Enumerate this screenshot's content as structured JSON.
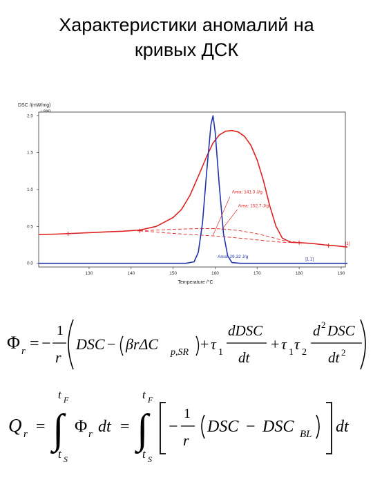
{
  "page": {
    "title_line1": "Характеристики аномалий на",
    "title_line2": "кривых ДСК"
  },
  "chart_data": {
    "type": "line",
    "ylabel": "DSC /(mW/mg)",
    "ylabel_sub": "↓ exo",
    "xlabel": "Temperature /°C",
    "xlim": [
      118,
      191
    ],
    "ylim": [
      -0.05,
      2.05
    ],
    "x_ticks": [
      "130",
      "140",
      "150",
      "160",
      "170",
      "180",
      "190"
    ],
    "y_ticks": [
      "0.0",
      "0.5",
      "1.0",
      "1.5",
      "2.0"
    ],
    "grid": false,
    "series": [
      {
        "color": "#dd2222",
        "x": [
          118,
          122,
          126,
          130,
          134,
          138,
          142,
          146,
          150,
          152,
          154,
          156,
          158,
          159.5,
          161,
          162.5,
          164,
          165.5,
          167,
          168.5,
          170,
          171.5,
          173,
          174.5,
          176,
          178,
          180,
          183,
          186,
          189,
          191.5
        ],
        "y": [
          0.39,
          0.395,
          0.405,
          0.415,
          0.425,
          0.435,
          0.45,
          0.5,
          0.62,
          0.73,
          0.92,
          1.18,
          1.45,
          1.63,
          1.74,
          1.79,
          1.8,
          1.78,
          1.72,
          1.6,
          1.4,
          1.12,
          0.78,
          0.5,
          0.34,
          0.285,
          0.28,
          0.27,
          0.25,
          0.235,
          0.22
        ]
      },
      {
        "color": "#2233aa",
        "x": [
          118,
          153,
          155,
          156,
          157,
          158,
          159,
          159.5,
          160,
          161,
          162,
          163,
          164,
          166,
          191.5
        ],
        "y": [
          0.0,
          0.0,
          0.02,
          0.15,
          0.55,
          1.25,
          1.88,
          2.0,
          1.78,
          1.05,
          0.4,
          0.1,
          0.01,
          0.0,
          0.0
        ]
      }
    ],
    "baselines": [
      {
        "color": "#dd2222",
        "x": [
          142,
          150,
          160,
          167,
          172,
          176,
          180
        ],
        "y": [
          0.44,
          0.405,
          0.37,
          0.335,
          0.305,
          0.285,
          0.28
        ]
      },
      {
        "color": "#dd2222",
        "x": [
          142,
          150,
          156,
          160,
          163,
          166,
          170,
          173,
          176,
          180
        ],
        "y": [
          0.44,
          0.46,
          0.47,
          0.47,
          0.46,
          0.44,
          0.4,
          0.36,
          0.31,
          0.28
        ]
      }
    ],
    "markers": [
      {
        "x": 125,
        "y": 0.4
      },
      {
        "x": 142,
        "y": 0.44
      },
      {
        "x": 180,
        "y": 0.28
      },
      {
        "x": 187,
        "y": 0.24
      }
    ],
    "annotations": [
      {
        "text": "Area: 141.3 J/g",
        "color": "#dd2222",
        "x": 164,
        "y": 0.95,
        "lx1": 163.5,
        "ly1": 0.9,
        "lx2": 159.5,
        "ly2": 0.38
      },
      {
        "text": "Area: 152.7 J/g",
        "color": "#dd2222",
        "x": 165.5,
        "y": 0.76,
        "lx1": 165.3,
        "ly1": 0.73,
        "lx2": 161.5,
        "ly2": 0.45
      },
      {
        "text": "Area: 29.32 J/g",
        "color": "#2233aa",
        "x": 160.6,
        "y": 0.07,
        "lx1": 0,
        "ly1": 0,
        "lx2": 0,
        "ly2": 0
      }
    ],
    "end_labels": [
      {
        "text": "[1]",
        "color": "#dd2222",
        "x": 191,
        "y": 0.25
      },
      {
        "text": "[1.1]",
        "color": "#2233aa",
        "x": 181.5,
        "y": 0.04
      }
    ]
  },
  "equations": {
    "eq1": {
      "lhs": "Φ",
      "lhs_sub": "r",
      "eq": "=",
      "minus": "−",
      "one": "1",
      "r": "r",
      "dsc": "DSC",
      "minus2": "−",
      "beta_r_delta": "βrΔC",
      "cp_sub": "p,SR",
      "plus1": "+",
      "tau": "τ",
      "tau_sub1": "1",
      "ddsc_num": "dDSC",
      "dt": "dt",
      "plus2": "+",
      "tau1": "τ",
      "tau1_sub": "1",
      "tau2": "τ",
      "tau2_sub": "2",
      "d2": "d",
      "d2_sup": "2",
      "d2_dsc": "DSC",
      "dt2": "dt",
      "dt2_sup": "2"
    },
    "eq2": {
      "lhs": "Q",
      "lhs_sub": "r",
      "eq1": "=",
      "integral": "∫",
      "t_upper": "t",
      "t_upper_sub": "F",
      "t_lower": "t",
      "t_lower_sub": "S",
      "phi": "Φ",
      "phi_sub": "r",
      "dt": "dt",
      "eq2": "=",
      "minus": "−",
      "one": "1",
      "r": "r",
      "dsc": "DSC",
      "minus2": "−",
      "dsc_bl": "DSC",
      "bl_sub": "BL",
      "dt2": "dt"
    }
  }
}
